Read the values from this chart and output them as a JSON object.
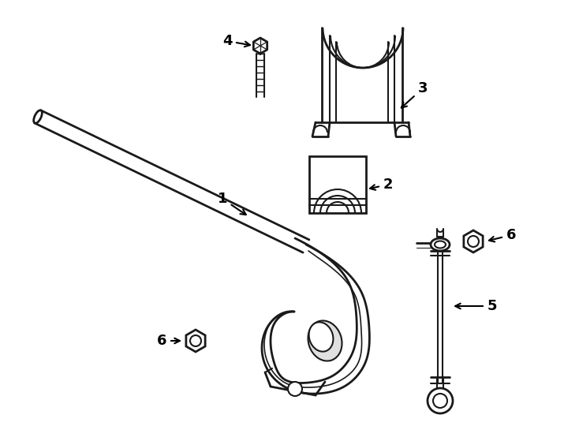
{
  "bg_color": "#ffffff",
  "line_color": "#1a1a1a",
  "label_color": "#000000",
  "fig_width": 7.34,
  "fig_height": 5.4,
  "dpi": 100
}
